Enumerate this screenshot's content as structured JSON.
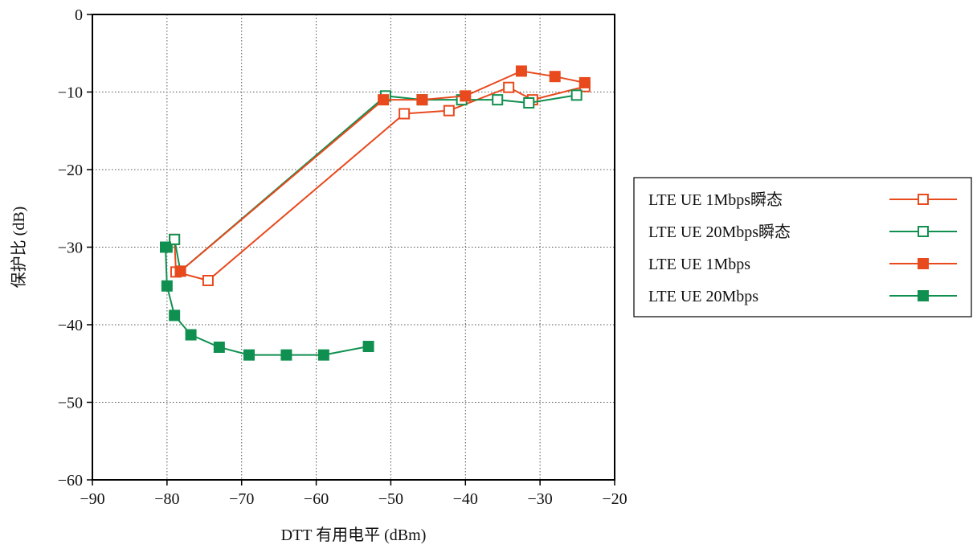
{
  "chart_data": {
    "type": "line",
    "title": "",
    "xlabel": "DTT 有用电平 (dBm)",
    "ylabel": "保护比 (dB)",
    "xlim": [
      -90,
      -20
    ],
    "ylim": [
      -60,
      0
    ],
    "xticks": [
      -90,
      -80,
      -70,
      -60,
      -50,
      -40,
      -30,
      -20
    ],
    "yticks": [
      0,
      -10,
      -20,
      -30,
      -40,
      -50,
      -60
    ],
    "xtick_labels": [
      "−90",
      "−80",
      "−70",
      "−60",
      "−50",
      "−40",
      "−30",
      "−20"
    ],
    "ytick_labels": [
      "0",
      "−10",
      "−20",
      "−30",
      "−40",
      "−50",
      "−60"
    ],
    "grid": true,
    "legend_position": "right",
    "series": [
      {
        "name": "LTE UE 1Mbps瞬态",
        "color": "#e8491d",
        "marker": "square-open",
        "x": [
          -79.0,
          -78.8,
          -74.5,
          -48.2,
          -42.2,
          -34.2,
          -31.0,
          -24.0
        ],
        "y": [
          -29.0,
          -33.2,
          -34.3,
          -12.8,
          -12.4,
          -9.4,
          -11.0,
          -9.3
        ]
      },
      {
        "name": "LTE UE 20Mbps瞬态",
        "color": "#109050",
        "marker": "square-open",
        "x": [
          -80.0,
          -79.0,
          -78.2,
          -50.7,
          -45.8,
          -40.5,
          -35.7,
          -31.5,
          -25.1
        ],
        "y": [
          -30.0,
          -29.0,
          -33.1,
          -10.5,
          -11.0,
          -11.0,
          -11.0,
          -11.4,
          -10.4
        ]
      },
      {
        "name": "LTE UE 1Mbps",
        "color": "#e8491d",
        "marker": "square-filled",
        "x": [
          -78.2,
          -51.0,
          -45.8,
          -40.0,
          -32.5,
          -28.0,
          -24.0
        ],
        "y": [
          -33.1,
          -11.0,
          -11.0,
          -10.5,
          -7.3,
          -8.0,
          -8.8
        ]
      },
      {
        "name": "LTE UE 20Mbps",
        "color": "#109050",
        "marker": "square-filled",
        "x": [
          -80.2,
          -80.0,
          -79.0,
          -76.8,
          -73.0,
          -69.0,
          -64.0,
          -59.0,
          -53.0
        ],
        "y": [
          -30.0,
          -35.0,
          -38.8,
          -41.3,
          -42.9,
          -43.9,
          -43.9,
          -43.9,
          -42.8
        ]
      }
    ]
  }
}
